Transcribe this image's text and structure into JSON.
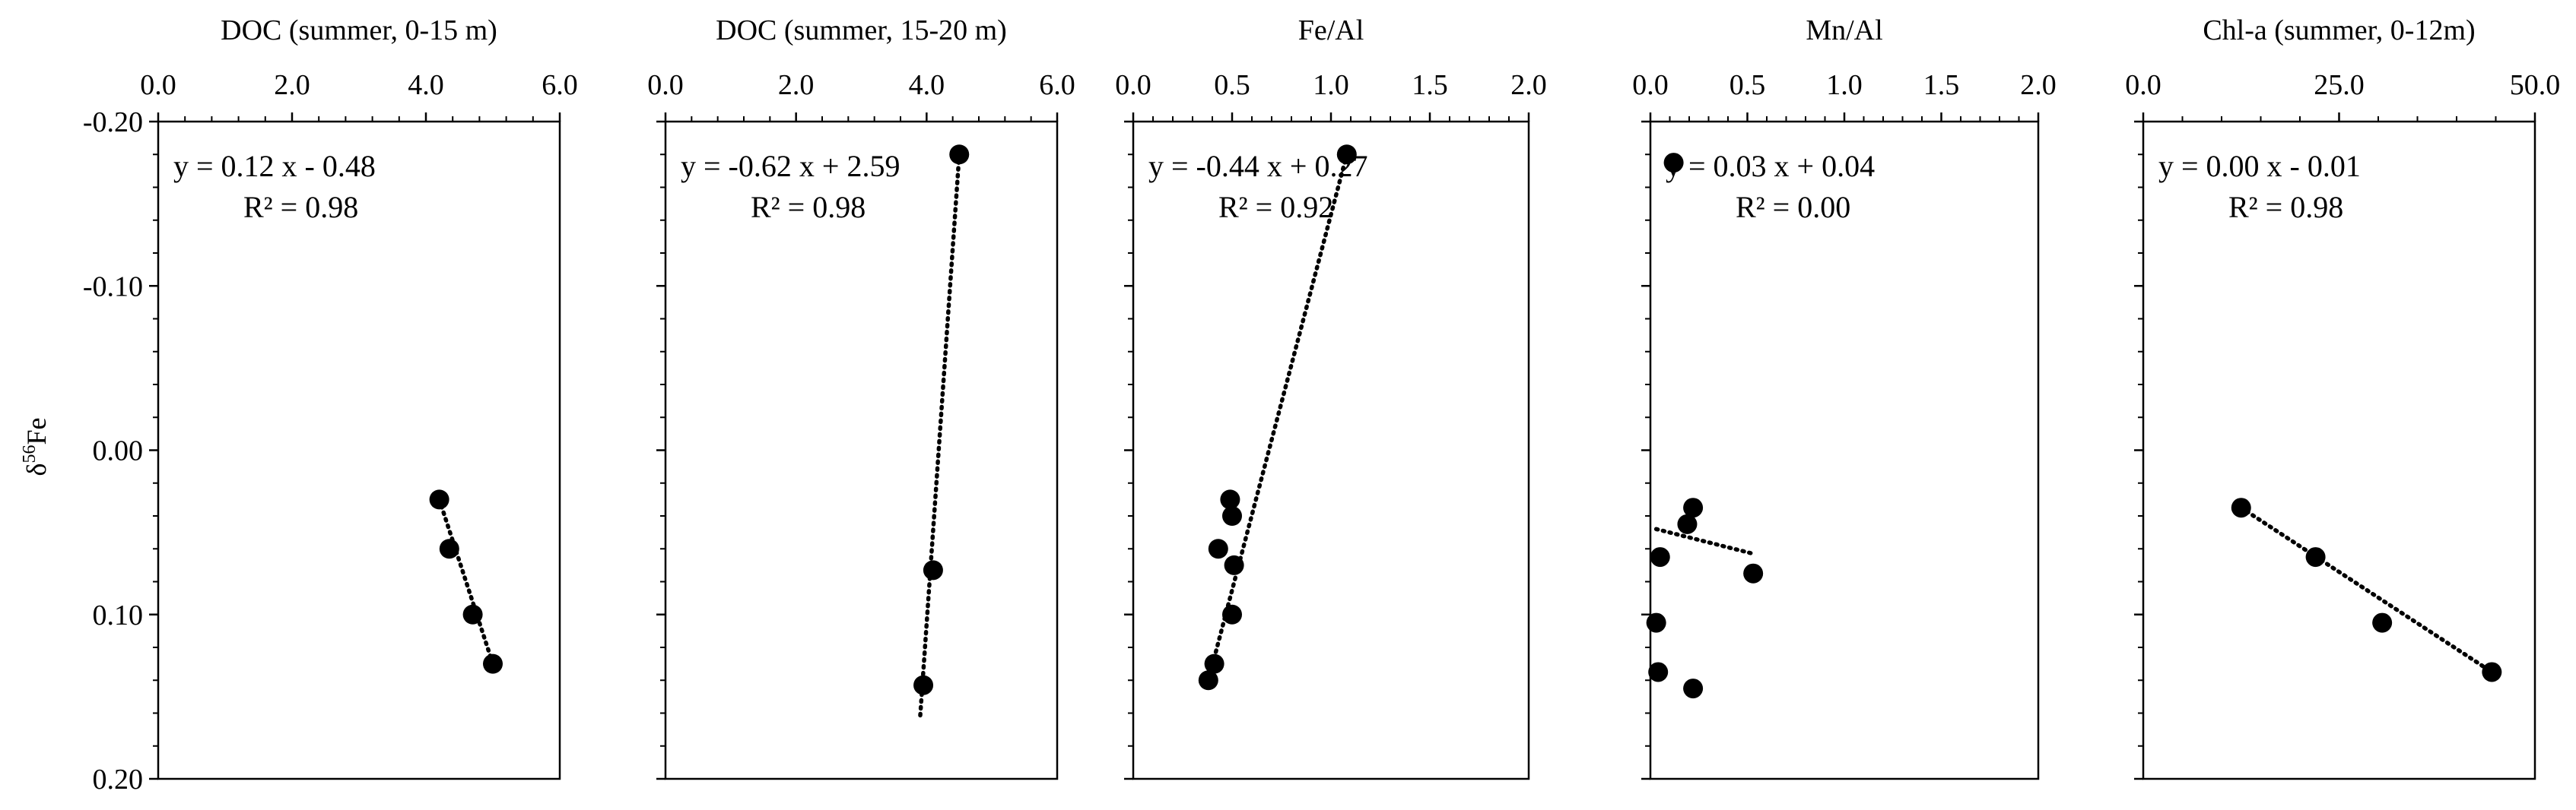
{
  "y_axis_label_base": "δ",
  "y_axis_label_sup": "56",
  "y_axis_label_tail": "Fe",
  "y_axis": {
    "range": [
      -0.2,
      0.2
    ],
    "reversed": true,
    "ticks": [
      -0.2,
      -0.1,
      0.0,
      0.1,
      0.2
    ],
    "tick_labels": [
      "-0.20",
      "-0.10",
      "0.00",
      "0.10",
      "0.20"
    ]
  },
  "colors": {
    "marker": "#000000",
    "trendline": "#000000",
    "axis": "#000000"
  },
  "chart_data": [
    {
      "type": "scatter",
      "title": "DOC (summer, 0-15 m)",
      "xlim": [
        0,
        6
      ],
      "x_ticks": [
        0,
        2,
        4,
        6
      ],
      "x_tick_labels": [
        "0.0",
        "2.0",
        "4.0",
        "6.0"
      ],
      "points": [
        {
          "x": 4.2,
          "y": 0.03
        },
        {
          "x": 4.35,
          "y": 0.06
        },
        {
          "x": 4.7,
          "y": 0.1
        },
        {
          "x": 5.0,
          "y": 0.13
        }
      ],
      "trendline": {
        "x": [
          4.2,
          5.0
        ],
        "y": [
          0.03,
          0.13
        ]
      },
      "equation": "y = 0.12 x - 0.48",
      "r2_label": "R² = 0.98",
      "grid": false
    },
    {
      "type": "scatter",
      "title": "DOC (summer, 15-20 m)",
      "xlim": [
        0,
        6
      ],
      "x_ticks": [
        0,
        2,
        4,
        6
      ],
      "x_tick_labels": [
        "0.0",
        "2.0",
        "4.0",
        "6.0"
      ],
      "points": [
        {
          "x": 4.5,
          "y": -0.18
        },
        {
          "x": 4.1,
          "y": 0.073
        },
        {
          "x": 3.95,
          "y": 0.143
        }
      ],
      "trendline": {
        "x": [
          4.5,
          3.9
        ],
        "y": [
          -0.18,
          0.163
        ]
      },
      "equation": "y = -0.62 x + 2.59",
      "r2_label": "R² = 0.98",
      "grid": false
    },
    {
      "type": "scatter",
      "title": "Fe/Al",
      "xlim": [
        0,
        2
      ],
      "x_ticks": [
        0,
        0.5,
        1.0,
        1.5,
        2.0
      ],
      "x_tick_labels": [
        "0.0",
        "0.5",
        "1.0",
        "1.5",
        "2.0"
      ],
      "points": [
        {
          "x": 1.08,
          "y": -0.18
        },
        {
          "x": 0.49,
          "y": 0.03
        },
        {
          "x": 0.5,
          "y": 0.04
        },
        {
          "x": 0.43,
          "y": 0.06
        },
        {
          "x": 0.51,
          "y": 0.07
        },
        {
          "x": 0.5,
          "y": 0.1
        },
        {
          "x": 0.41,
          "y": 0.13
        },
        {
          "x": 0.38,
          "y": 0.14
        }
      ],
      "trendline": {
        "x": [
          1.08,
          0.38
        ],
        "y": [
          -0.18,
          0.14
        ]
      },
      "equation": "y = -0.44 x + 0.27",
      "r2_label": "R² = 0.92",
      "grid": false
    },
    {
      "type": "scatter",
      "title": "Mn/Al",
      "xlim": [
        0,
        2
      ],
      "x_ticks": [
        0,
        0.5,
        1.0,
        1.5,
        2.0
      ],
      "x_tick_labels": [
        "0.0",
        "0.5",
        "1.0",
        "1.5",
        "2.0"
      ],
      "points": [
        {
          "x": 0.12,
          "y": -0.175
        },
        {
          "x": 0.22,
          "y": 0.035
        },
        {
          "x": 0.19,
          "y": 0.045
        },
        {
          "x": 0.05,
          "y": 0.065
        },
        {
          "x": 0.53,
          "y": 0.075
        },
        {
          "x": 0.03,
          "y": 0.105
        },
        {
          "x": 0.04,
          "y": 0.135
        },
        {
          "x": 0.22,
          "y": 0.145
        }
      ],
      "trendline": {
        "x": [
          0.03,
          0.53
        ],
        "y": [
          0.048,
          0.063
        ]
      },
      "equation": "y = 0.03 x + 0.04",
      "r2_label": "R² = 0.00",
      "grid": false
    },
    {
      "type": "scatter",
      "title": "Chl-a (summer, 0-12m)",
      "xlim": [
        0,
        50
      ],
      "x_ticks": [
        0,
        25,
        50
      ],
      "x_tick_labels": [
        "0.0",
        "25.0",
        "50.0"
      ],
      "points": [
        {
          "x": 12.5,
          "y": 0.035
        },
        {
          "x": 22,
          "y": 0.065
        },
        {
          "x": 30.5,
          "y": 0.105
        },
        {
          "x": 44.5,
          "y": 0.135
        }
      ],
      "trendline": {
        "x": [
          12.5,
          44.5
        ],
        "y": [
          0.035,
          0.135
        ]
      },
      "equation": "y = 0.00 x - 0.01",
      "r2_label": "R² = 0.98",
      "grid": false
    }
  ]
}
